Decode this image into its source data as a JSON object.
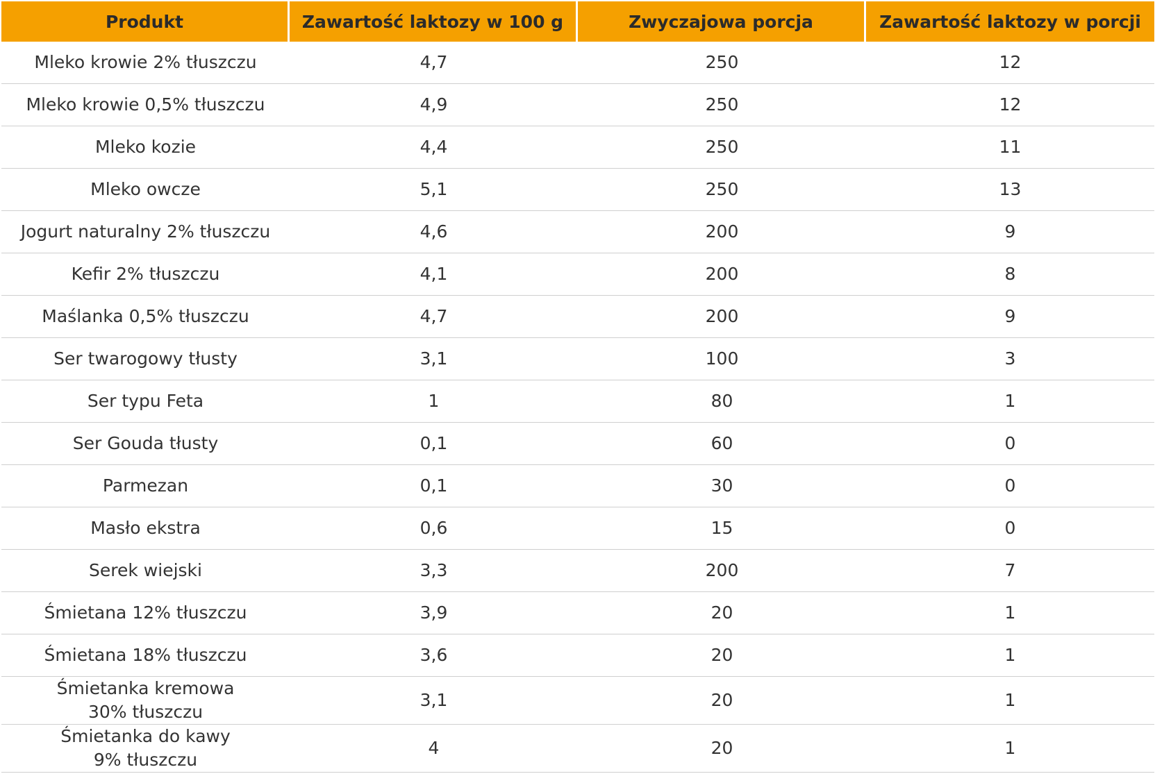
{
  "table": {
    "header": [
      "Produkt",
      "Zawartość laktozy w 100 g",
      "Zwyczajowa porcja",
      "Zawartość laktozy w porcji"
    ],
    "rows": [
      [
        "Mleko krowie 2% tłuszczu",
        "4,7",
        "250",
        "12"
      ],
      [
        "Mleko krowie 0,5% tłuszczu",
        "4,9",
        "250",
        "12"
      ],
      [
        "Mleko kozie",
        "4,4",
        "250",
        "11"
      ],
      [
        "Mleko owcze",
        "5,1",
        "250",
        "13"
      ],
      [
        "Jogurt naturalny 2% tłuszczu",
        "4,6",
        "200",
        "9"
      ],
      [
        "Kefir 2% tłuszczu",
        "4,1",
        "200",
        "8"
      ],
      [
        "Maślanka 0,5% tłuszczu",
        "4,7",
        "200",
        "9"
      ],
      [
        "Ser twarogowy tłusty",
        "3,1",
        "100",
        "3"
      ],
      [
        "Ser typu Feta",
        "1",
        "80",
        "1"
      ],
      [
        "Ser Gouda tłusty",
        "0,1",
        "60",
        "0"
      ],
      [
        "Parmezan",
        "0,1",
        "30",
        "0"
      ],
      [
        "Masło ekstra",
        "0,6",
        "15",
        "0"
      ],
      [
        "Serek wiejski",
        "3,3",
        "200",
        "7"
      ],
      [
        "Śmietana 12% tłuszczu",
        "3,9",
        "20",
        "1"
      ],
      [
        "Śmietana 18% tłuszczu",
        "3,6",
        "20",
        "1"
      ],
      [
        "Śmietanka kremowa\n30% tłuszczu",
        "3,1",
        "20",
        "1"
      ],
      [
        "Śmietanka do kawy\n9% tłuszczu",
        "4",
        "20",
        "1"
      ]
    ]
  }
}
